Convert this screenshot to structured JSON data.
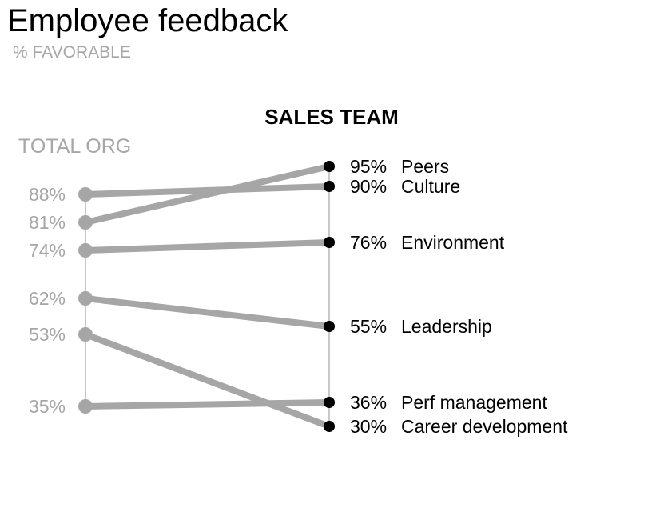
{
  "chart_data": {
    "type": "slope",
    "title": "Employee feedback",
    "subtitle": "% FAVORABLE",
    "left_header": "TOTAL ORG",
    "right_header": "SALES TEAM",
    "categories": [
      "Peers",
      "Culture",
      "Environment",
      "Leadership",
      "Perf management",
      "Career development"
    ],
    "series": [
      {
        "name": "TOTAL ORG",
        "values": [
          81,
          88,
          74,
          62,
          35,
          53
        ]
      },
      {
        "name": "SALES TEAM",
        "values": [
          95,
          90,
          76,
          55,
          36,
          30
        ]
      }
    ],
    "left_labels": [
      "81%",
      "88%",
      "74%",
      "62%",
      "35%",
      "53%"
    ],
    "right_labels": [
      "95%",
      "90%",
      "76%",
      "55%",
      "36%",
      "30%"
    ],
    "colors": {
      "left": "#a6a6a6",
      "right": "#000000",
      "line": "#a6a6a6",
      "axis": "#c8c8c8"
    }
  }
}
